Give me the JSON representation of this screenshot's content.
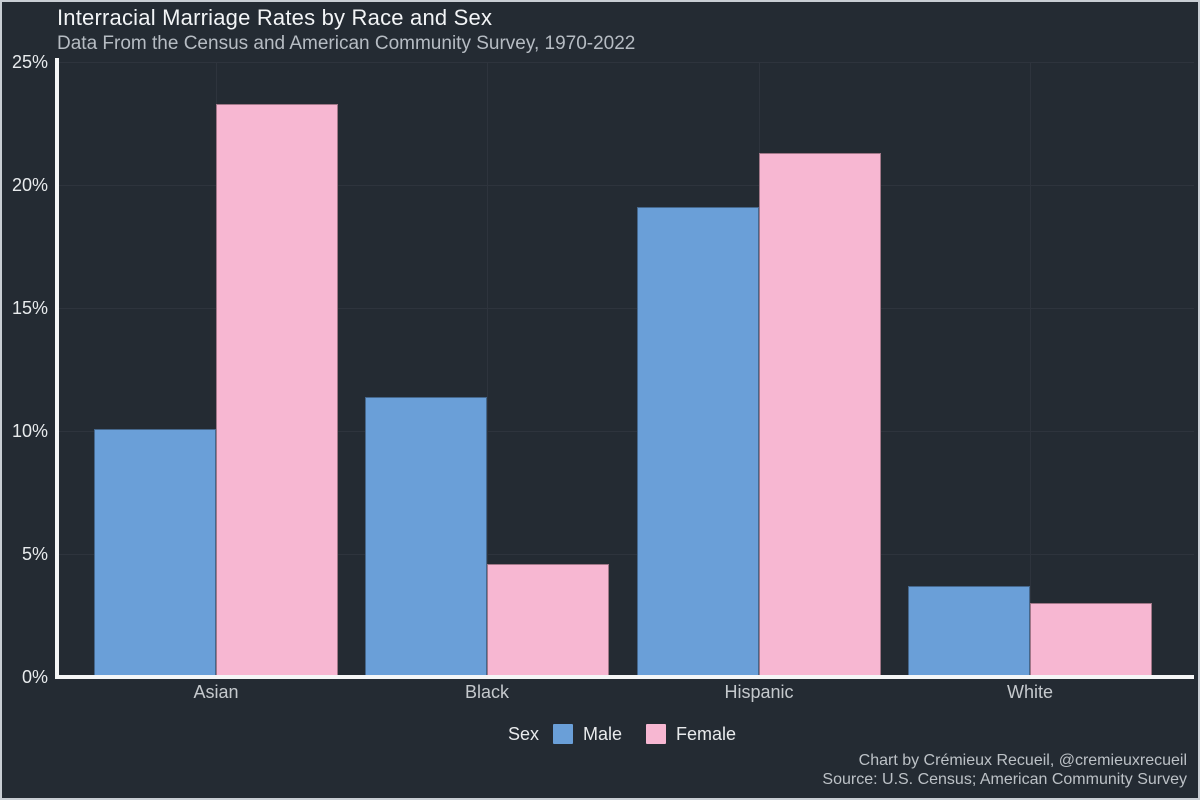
{
  "title": "Interracial Marriage Rates by Race and Sex",
  "subtitle": "Data From the Census and American Community Survey, 1970-2022",
  "colors": {
    "male": "#6A9FD8",
    "female": "#F7B7D2",
    "background": "#242B33",
    "gridline": "#2E343D",
    "axis": "#F5F6F7",
    "frame_border": "#C9CED4"
  },
  "chart_data": {
    "type": "bar",
    "categories": [
      "Asian",
      "Black",
      "Hispanic",
      "White"
    ],
    "series": [
      {
        "name": "Male",
        "color": "#6A9FD8",
        "values": [
          10.1,
          11.4,
          19.1,
          3.7
        ]
      },
      {
        "name": "Female",
        "color": "#F7B7D2",
        "values": [
          23.3,
          4.6,
          21.3,
          3.0
        ]
      }
    ],
    "title": "Interracial Marriage Rates by Race and Sex",
    "subtitle": "Data From the Census and American Community Survey, 1970-2022",
    "xlabel": "",
    "ylabel": "",
    "ylim": [
      0,
      25
    ],
    "yticks": [
      "0%",
      "5%",
      "10%",
      "15%",
      "20%",
      "25%"
    ],
    "grid": "on",
    "legend_title": "Sex",
    "legend_position": "bottom"
  },
  "legend": {
    "title": "Sex",
    "items": [
      {
        "label": "Male",
        "color": "#6A9FD8"
      },
      {
        "label": "Female",
        "color": "#F7B7D2"
      }
    ]
  },
  "footer": {
    "line1": "Chart by Crémieux Recueil, @cremieuxrecueil",
    "line2": "Source: U.S. Census; American Community Survey"
  }
}
